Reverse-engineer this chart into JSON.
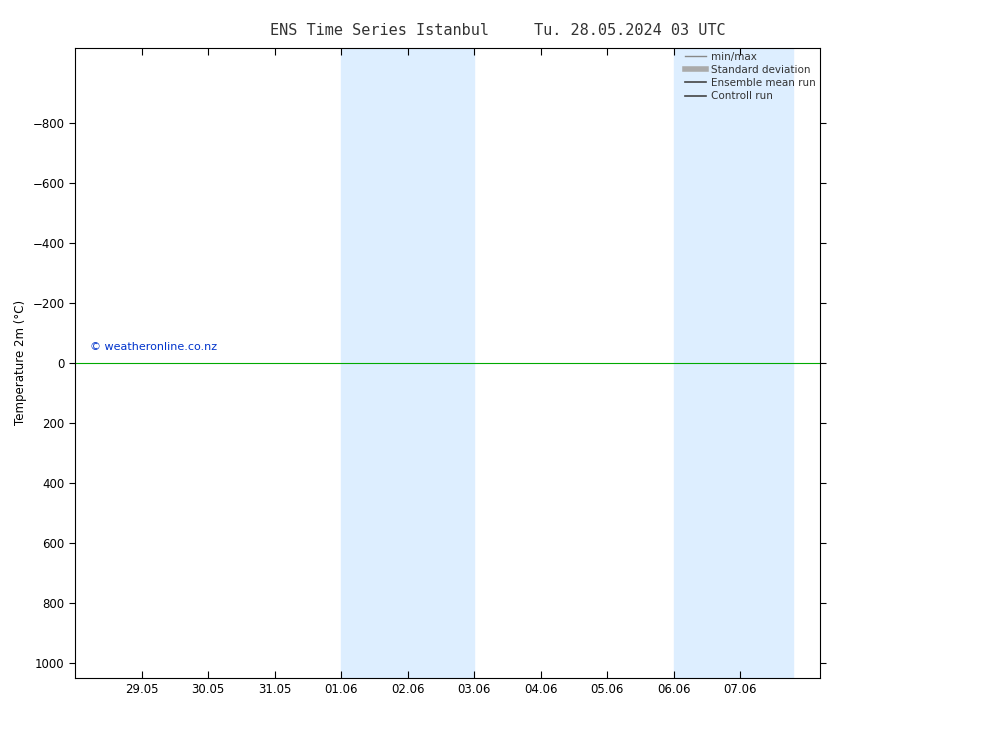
{
  "title_left": "ENS Time Series Istanbul",
  "title_right": "Tu. 28.05.2024 03 UTC",
  "ylabel": "Temperature 2m (°C)",
  "ylim": [
    -1050,
    1050
  ],
  "yticks": [
    -800,
    -600,
    -400,
    -200,
    0,
    200,
    400,
    600,
    800,
    1000
  ],
  "xtick_labels": [
    "29.05",
    "30.05",
    "31.05",
    "01.06",
    "02.06",
    "03.06",
    "04.06",
    "05.06",
    "06.06",
    "07.06"
  ],
  "xtick_positions": [
    1,
    2,
    3,
    4,
    5,
    6,
    7,
    8,
    9,
    10
  ],
  "xlim": [
    0,
    11.2
  ],
  "shade_bands": [
    {
      "x_start": 4.0,
      "x_end": 6.0
    },
    {
      "x_start": 9.0,
      "x_end": 10.8
    }
  ],
  "shade_color": "#ddeeff",
  "zero_line_color": "#00aa00",
  "background_color": "#ffffff",
  "plot_bg_color": "#ffffff",
  "copyright_text": "© weatheronline.co.nz",
  "copyright_color": "#0033cc",
  "legend_items": [
    {
      "label": "min/max",
      "color": "#888888",
      "lw": 1.0
    },
    {
      "label": "Standard deviation",
      "color": "#aaaaaa",
      "lw": 4.0
    },
    {
      "label": "Ensemble mean run",
      "color": "#444444",
      "lw": 1.2
    },
    {
      "label": "Controll run",
      "color": "#444444",
      "lw": 1.2
    }
  ],
  "title_fontsize": 11,
  "tick_label_fontsize": 8.5,
  "ylabel_fontsize": 8.5,
  "legend_fontsize": 7.5,
  "copyright_fontsize": 8
}
